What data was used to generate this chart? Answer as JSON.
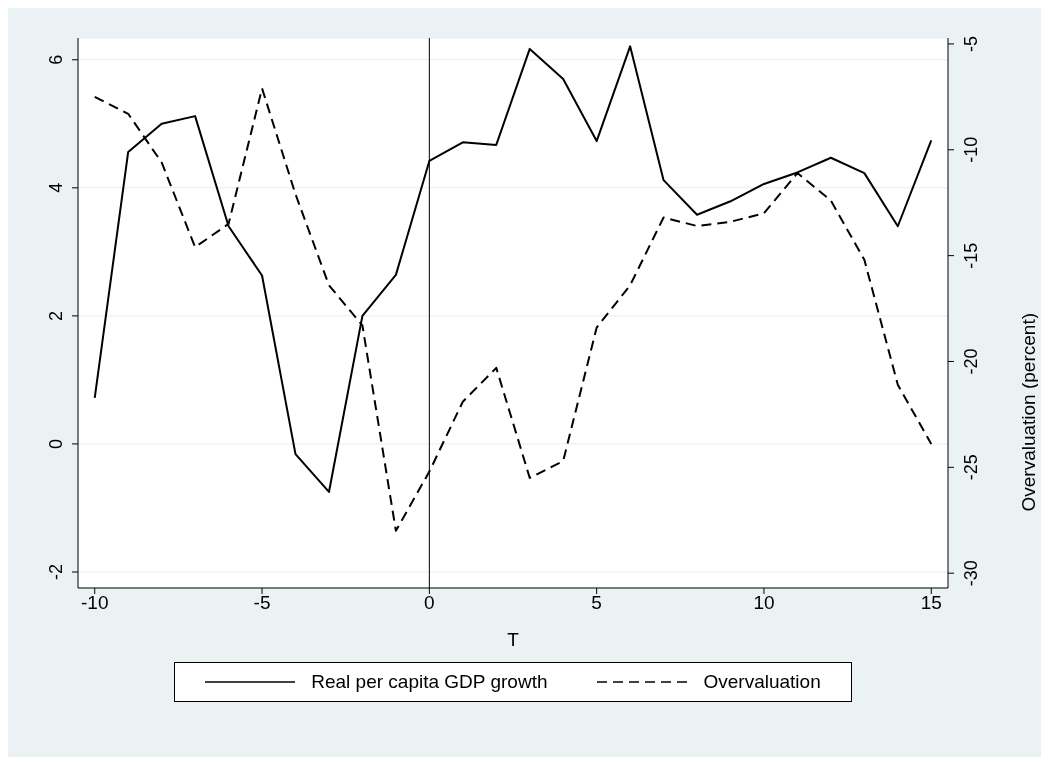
{
  "chart_data": {
    "type": "line",
    "xlabel": "T",
    "y2label": "Overvaluation (percent)",
    "x": [
      -10,
      -9,
      -8,
      -7,
      -6,
      -5,
      -4,
      -3,
      -2,
      -1,
      0,
      1,
      2,
      3,
      4,
      5,
      6,
      7,
      8,
      9,
      10,
      11,
      12,
      13,
      14,
      15
    ],
    "series": [
      {
        "name": "Real per capita GDP growth",
        "color": "#000000",
        "line_style": "solid",
        "values": [
          0.72,
          4.56,
          5.0,
          5.12,
          3.4,
          2.63,
          -0.16,
          -0.75,
          2.0,
          2.64,
          4.42,
          4.71,
          4.67,
          6.17,
          5.7,
          4.73,
          6.21,
          4.12,
          3.58,
          3.79,
          4.06,
          4.24,
          4.47,
          4.23,
          3.4,
          4.74
        ]
      },
      {
        "name": "Overvaluation",
        "color": "#000000",
        "line_style": "dashed",
        "axis": "y2",
        "values": [
          -7.5,
          -8.3,
          -10.6,
          -14.6,
          -13.5,
          -7.1,
          -12.1,
          -16.4,
          -18.3,
          -28.0,
          -25.2,
          -21.9,
          -20.3,
          -25.5,
          -24.7,
          -18.4,
          -16.4,
          -13.2,
          -13.6,
          -13.4,
          -13.0,
          -11.1,
          -12.4,
          -15.2,
          -21.1,
          -23.9
        ]
      }
    ],
    "xlim": [
      -10.5,
      15.5
    ],
    "xticks": [
      -10,
      -5,
      0,
      5,
      10,
      15
    ],
    "ylim": [
      -2.25,
      6.34
    ],
    "yticks": [
      -2,
      0,
      2,
      4,
      6
    ],
    "y2lim": [
      -30.7,
      -4.72
    ],
    "y2ticks": [
      -30,
      -25,
      -20,
      -15,
      -10,
      -5
    ],
    "ref_lines": [
      {
        "axis": "x",
        "value": 0,
        "color": "#000000"
      }
    ],
    "grid": "y",
    "legend": "bottom",
    "marker": "none"
  }
}
